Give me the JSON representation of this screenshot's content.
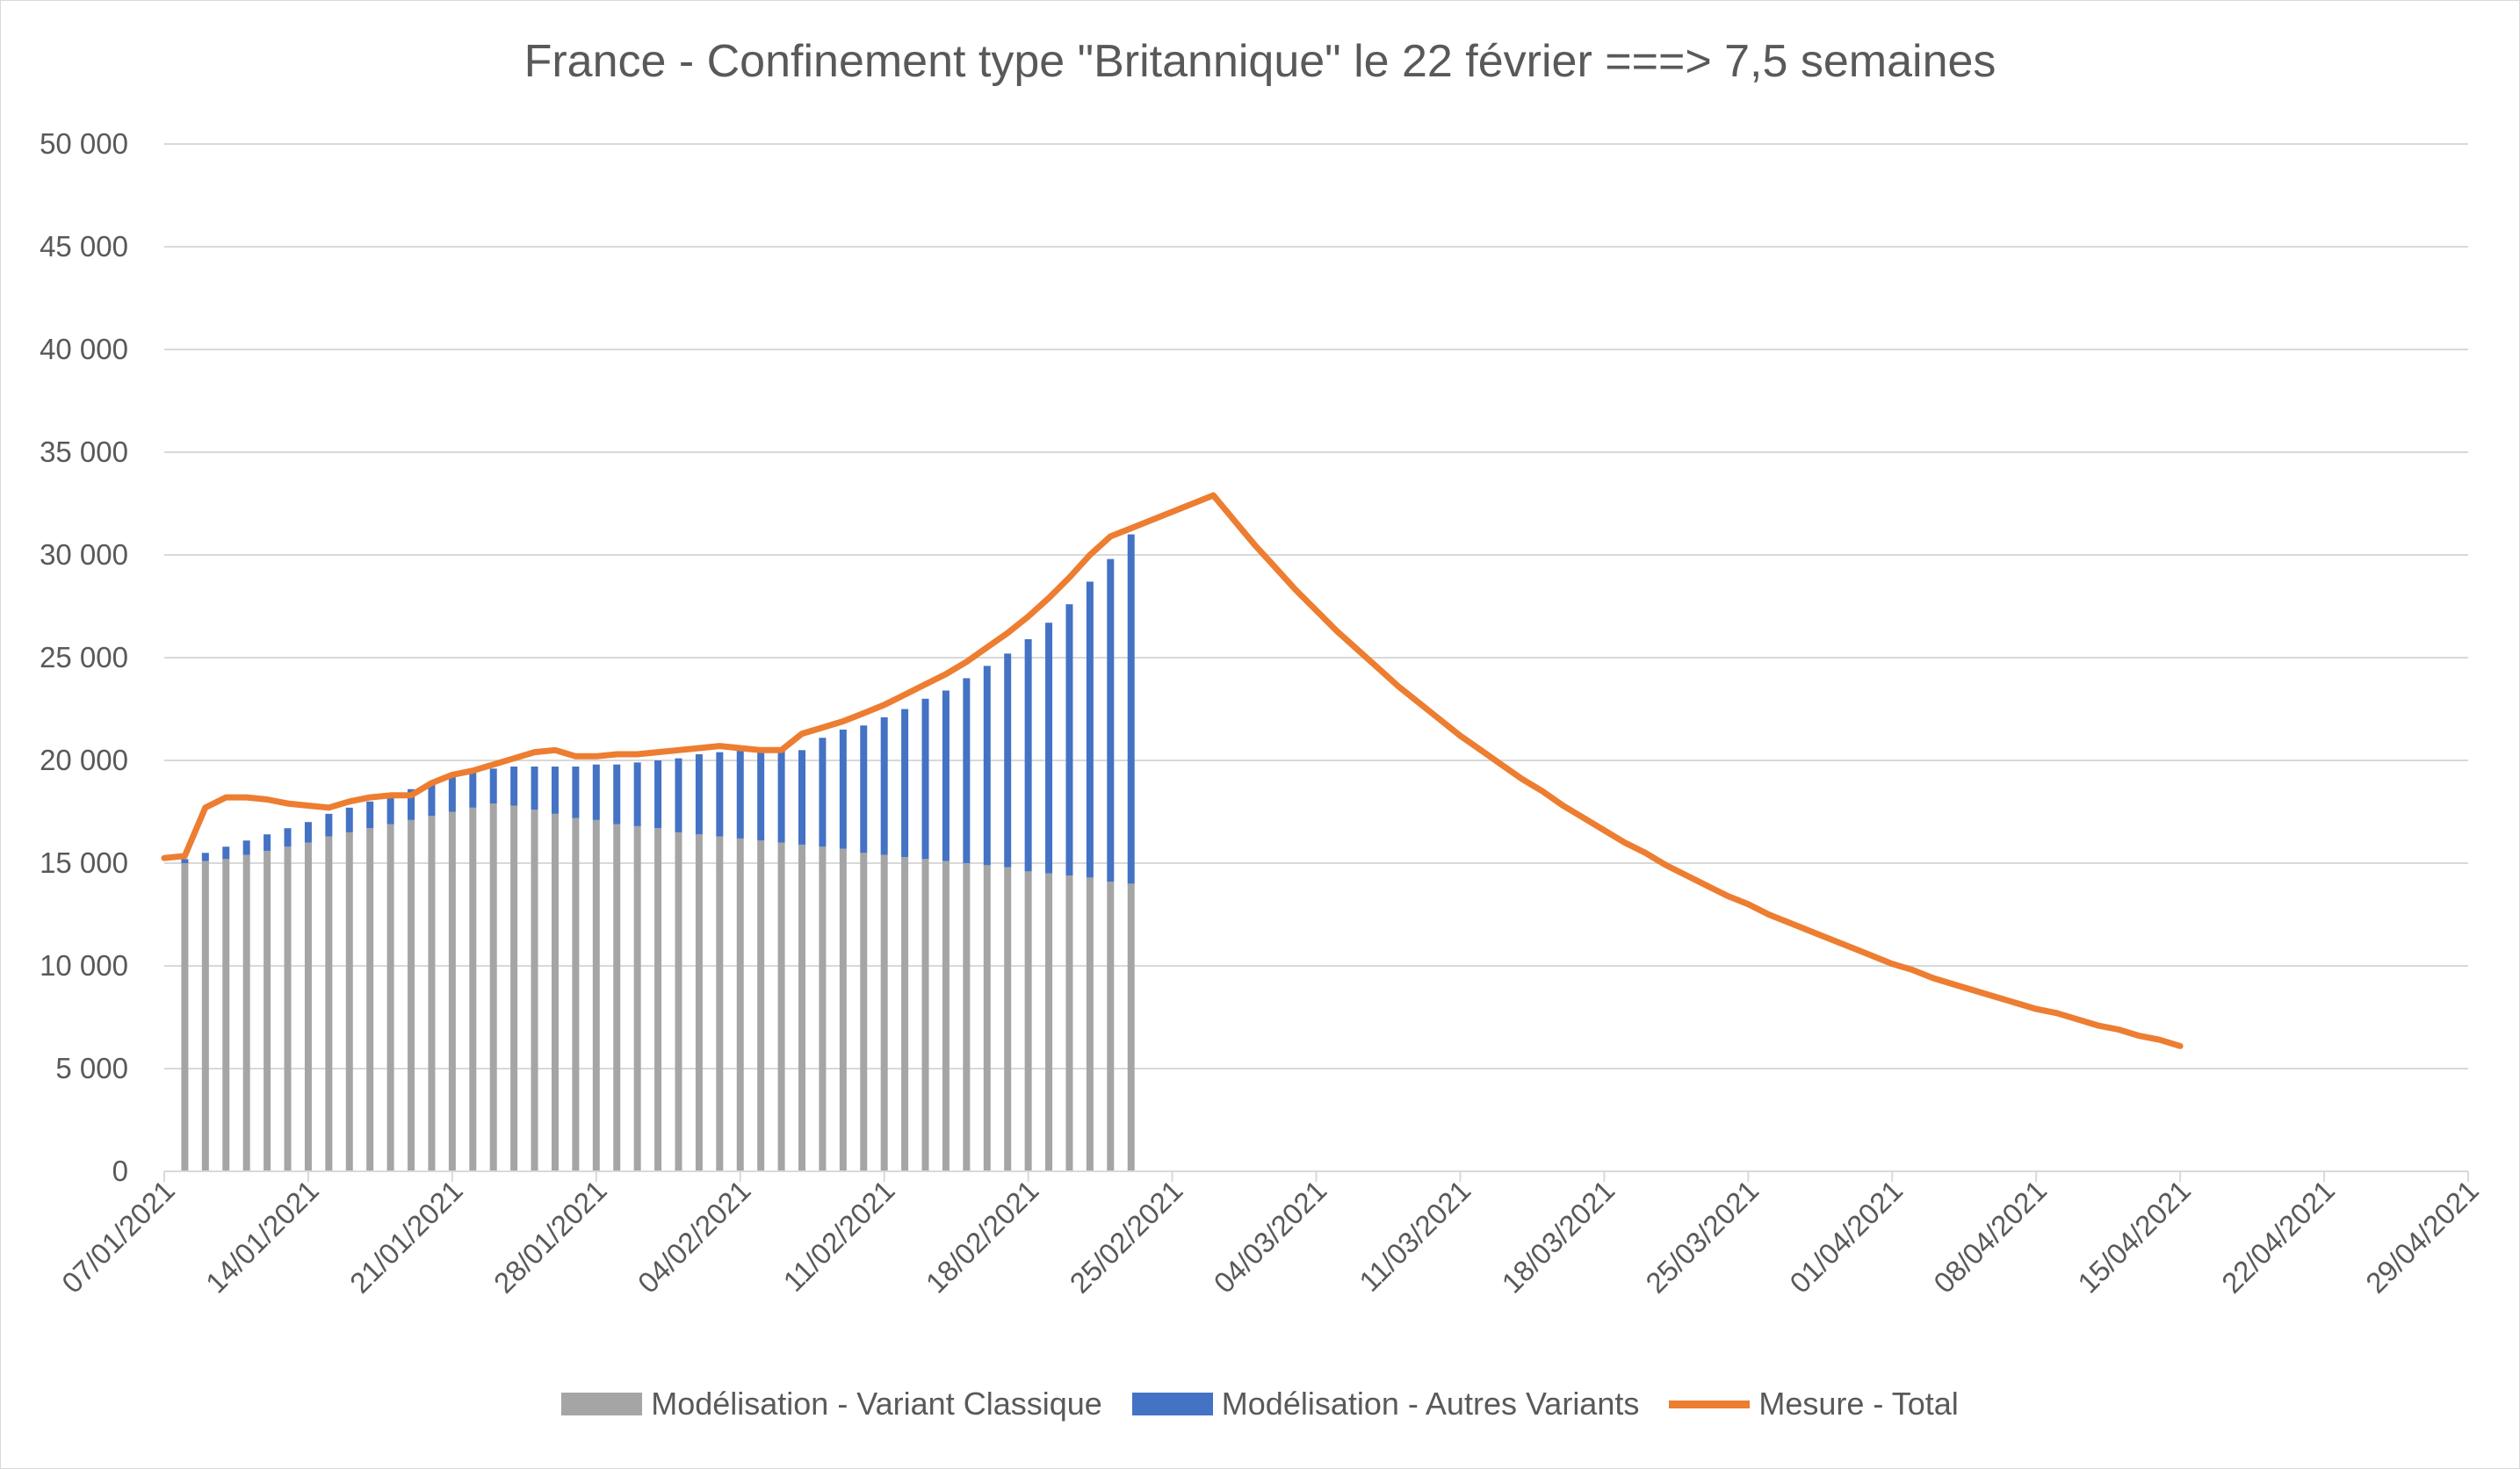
{
  "chart_data": {
    "type": "bar",
    "title": "France - Confinement type \"Britannique\" le 22 février ===> 7,5 semaines",
    "ylim": [
      0,
      50000
    ],
    "y_ticks": [
      "0",
      "5 000",
      "10 000",
      "15 000",
      "20 000",
      "25 000",
      "30 000",
      "35 000",
      "40 000",
      "45 000",
      "50 000"
    ],
    "y_tick_values": [
      0,
      5000,
      10000,
      15000,
      20000,
      25000,
      30000,
      35000,
      40000,
      45000,
      50000
    ],
    "x_ticks": [
      "07/01/2021",
      "14/01/2021",
      "21/01/2021",
      "28/01/2021",
      "04/02/2021",
      "11/02/2021",
      "18/02/2021",
      "25/02/2021",
      "04/03/2021",
      "11/03/2021",
      "18/03/2021",
      "25/03/2021",
      "01/04/2021",
      "08/04/2021",
      "15/04/2021",
      "22/04/2021",
      "29/04/2021"
    ],
    "xlim_days": [
      0,
      112
    ],
    "grid": true,
    "legend_position": "bottom",
    "bar_dates": [
      "08/01/2021",
      "09/01/2021",
      "10/01/2021",
      "11/01/2021",
      "12/01/2021",
      "13/01/2021",
      "14/01/2021",
      "15/01/2021",
      "16/01/2021",
      "17/01/2021",
      "18/01/2021",
      "19/01/2021",
      "20/01/2021",
      "21/01/2021",
      "22/01/2021",
      "23/01/2021",
      "24/01/2021",
      "25/01/2021",
      "26/01/2021",
      "27/01/2021",
      "28/01/2021",
      "29/01/2021",
      "30/01/2021",
      "31/01/2021",
      "01/02/2021",
      "02/02/2021",
      "03/02/2021",
      "04/02/2021",
      "05/02/2021",
      "06/02/2021",
      "07/02/2021",
      "08/02/2021",
      "09/02/2021",
      "10/02/2021",
      "11/02/2021",
      "12/02/2021",
      "13/02/2021",
      "14/02/2021",
      "15/02/2021",
      "16/02/2021",
      "17/02/2021",
      "18/02/2021",
      "19/02/2021",
      "20/02/2021",
      "21/02/2021",
      "22/02/2021",
      "23/02/2021"
    ],
    "series": [
      {
        "name": "Modélisation - Variant Classique",
        "color": "#a5a5a5",
        "values": [
          15000,
          15100,
          15200,
          15400,
          15600,
          15800,
          16000,
          16300,
          16500,
          16700,
          16900,
          17100,
          17300,
          17500,
          17700,
          17900,
          17800,
          17600,
          17400,
          17200,
          17100,
          16900,
          16800,
          16700,
          16500,
          16400,
          16300,
          16200,
          16100,
          16000,
          15900,
          15800,
          15700,
          15500,
          15400,
          15300,
          15200,
          15100,
          15000,
          14900,
          14800,
          14600,
          14500,
          14400,
          14300,
          14100,
          14000
        ]
      },
      {
        "name": "Modélisation - Autres Variants",
        "color": "#4472c4",
        "values": [
          200,
          400,
          600,
          700,
          800,
          900,
          1000,
          1100,
          1200,
          1300,
          1400,
          1500,
          1600,
          1700,
          1700,
          1700,
          1900,
          2100,
          2300,
          2500,
          2700,
          2900,
          3100,
          3300,
          3600,
          3900,
          4100,
          4300,
          4400,
          4500,
          4600,
          5300,
          5800,
          6200,
          6700,
          7200,
          7800,
          8300,
          9000,
          9700,
          10400,
          11300,
          12200,
          13200,
          14400,
          15700,
          17000
        ]
      },
      {
        "name": "Mesure - Total",
        "color": "#ed7d31",
        "days": [
          0,
          1,
          2,
          3,
          4,
          5,
          6,
          7,
          8,
          9,
          10,
          11,
          12,
          13,
          14,
          15,
          16,
          17,
          18,
          19,
          20,
          21,
          22,
          23,
          24,
          25,
          26,
          27,
          28,
          29,
          30,
          31,
          32,
          33,
          34,
          35,
          36,
          37,
          38,
          39,
          40,
          41,
          42,
          43,
          44,
          45,
          46,
          47,
          48,
          49,
          50,
          51,
          52,
          53,
          54,
          55,
          56,
          57,
          58,
          59,
          60,
          61,
          62,
          63,
          64,
          65,
          66,
          67,
          68,
          69,
          70,
          71,
          72,
          73,
          74,
          75,
          76,
          77,
          78,
          79,
          80,
          81,
          82,
          83,
          84,
          85,
          86,
          87,
          88,
          89,
          90,
          91,
          92,
          93,
          94,
          95,
          96,
          97,
          98
        ],
        "values": [
          15250,
          15350,
          17700,
          18200,
          18200,
          18100,
          17900,
          17800,
          17700,
          18000,
          18200,
          18300,
          18300,
          18900,
          19300,
          19500,
          19800,
          20100,
          20400,
          20500,
          20200,
          20200,
          20300,
          20300,
          20400,
          20500,
          20600,
          20700,
          20600,
          20500,
          20500,
          21300,
          21600,
          21900,
          22300,
          22700,
          23200,
          23700,
          24200,
          24800,
          25500,
          26200,
          27000,
          27900,
          28900,
          30000,
          30900,
          31300,
          31700,
          32100,
          32500,
          32900,
          31700,
          30500,
          29400,
          28300,
          27300,
          26300,
          25400,
          24500,
          23600,
          22800,
          22000,
          21200,
          20500,
          19800,
          19100,
          18500,
          17800,
          17200,
          16600,
          16000,
          15500,
          14900,
          14400,
          13900,
          13400,
          13000,
          12500,
          12100,
          11700,
          11300,
          10900,
          10500,
          10100,
          9800,
          9400,
          9100,
          8800,
          8500,
          8200,
          7900,
          7700,
          7400,
          7100,
          6900,
          6600,
          6400,
          6100
        ]
      }
    ]
  },
  "legend": {
    "item1": "Modélisation - Variant Classique",
    "item2": "Modélisation - Autres Variants",
    "item3": "Mesure - Total"
  }
}
